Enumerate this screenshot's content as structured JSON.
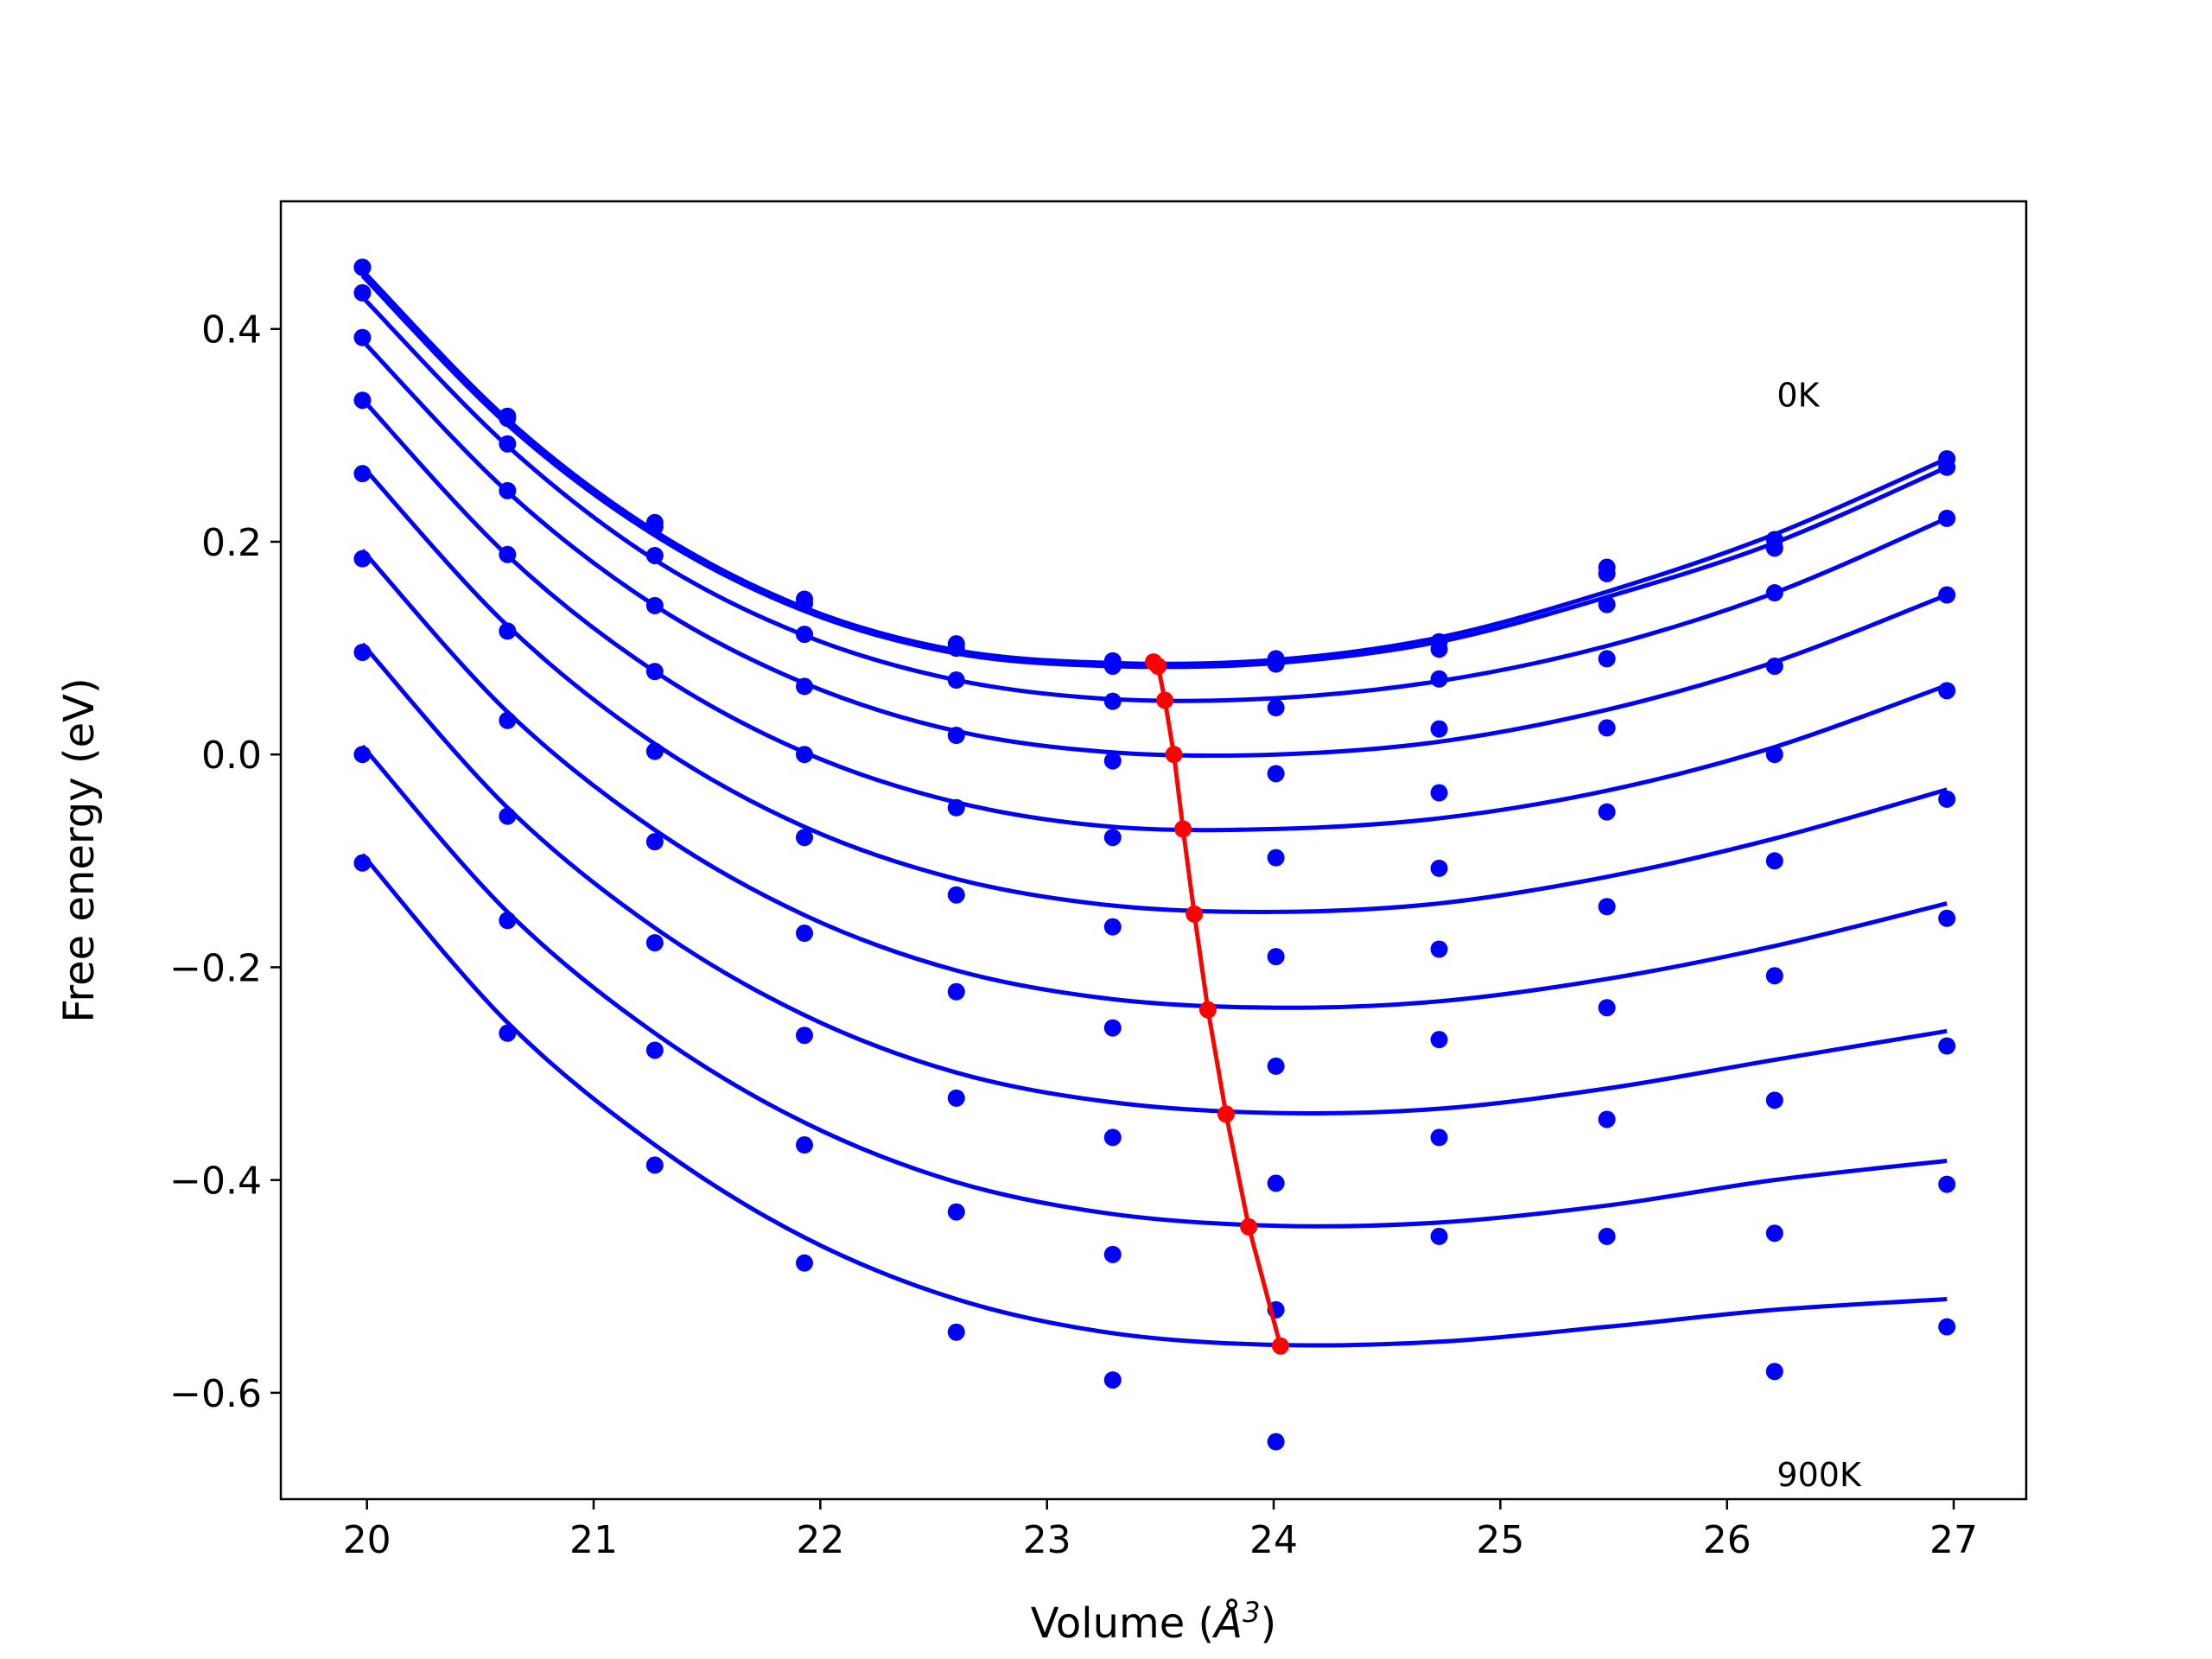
{
  "chart_data": {
    "type": "line",
    "title": "",
    "xlabel_prefix": "Volume (",
    "xlabel_unit": "Å",
    "xlabel_exp": "3",
    "xlabel_suffix": ")",
    "ylabel": "Free energy (eV)",
    "xlim": [
      19.62,
      27.32
    ],
    "ylim": [
      -0.7,
      0.52
    ],
    "xticks": [
      20,
      21,
      22,
      23,
      24,
      25,
      26,
      27
    ],
    "yticks": [
      0.4,
      0.2,
      0.0,
      -0.2,
      -0.4,
      -0.6
    ],
    "ytick_labels": [
      "0.4",
      "0.2",
      "0.0",
      "−0.2",
      "−0.4",
      "−0.6"
    ],
    "grid": false,
    "colors": {
      "curves": "#0000ff",
      "minima": "#ff0000"
    },
    "annotations": [
      {
        "text": "0K",
        "x": 26.22,
        "y": 0.327
      },
      {
        "text": "900K",
        "x": 26.22,
        "y": -0.688
      }
    ],
    "volumes": [
      19.98,
      20.62,
      21.27,
      21.93,
      22.6,
      23.29,
      24.01,
      24.73,
      25.47,
      26.21,
      26.97
    ],
    "series": [
      {
        "points": [
          0.458,
          0.318,
          0.218,
          0.146,
          0.104,
          0.088,
          0.09,
          0.106,
          0.176,
          0.202,
          0.278
        ],
        "fit": [
          0.455,
          0.315,
          0.21,
          0.138,
          0.098,
          0.086,
          0.089,
          0.11,
          0.153,
          0.207,
          0.278
        ]
      },
      {
        "points": [
          0.458,
          0.316,
          0.214,
          0.142,
          0.1,
          0.083,
          0.085,
          0.099,
          0.17,
          0.194,
          0.27
        ],
        "fit": [
          0.45,
          0.31,
          0.206,
          0.135,
          0.095,
          0.083,
          0.086,
          0.106,
          0.148,
          0.199,
          0.27
        ]
      },
      {
        "points": [
          0.434,
          0.292,
          0.187,
          0.113,
          0.07,
          0.05,
          0.044,
          0.071,
          0.141,
          0.152,
          0.222
        ],
        "fit": [
          0.43,
          0.29,
          0.183,
          0.112,
          0.07,
          0.052,
          0.053,
          0.069,
          0.102,
          0.152,
          0.222
        ]
      },
      {
        "points": [
          0.392,
          0.248,
          0.14,
          0.064,
          0.018,
          -0.006,
          -0.018,
          0.024,
          0.09,
          0.083,
          0.15
        ],
        "fit": [
          0.389,
          0.247,
          0.14,
          0.067,
          0.022,
          0.002,
          0.0,
          0.012,
          0.042,
          0.087,
          0.15
        ]
      },
      {
        "points": [
          0.333,
          0.188,
          0.078,
          0.0,
          -0.05,
          -0.078,
          -0.097,
          -0.036,
          0.025,
          0.0,
          0.06
        ],
        "fit": [
          0.334,
          0.187,
          0.078,
          0.002,
          -0.045,
          -0.068,
          -0.07,
          -0.06,
          -0.034,
          0.007,
          0.065
        ]
      },
      {
        "points": [
          0.264,
          0.116,
          0.003,
          -0.078,
          -0.132,
          -0.162,
          -0.19,
          -0.107,
          -0.054,
          -0.1,
          -0.042
        ],
        "fit": [
          0.271,
          0.121,
          0.01,
          -0.068,
          -0.117,
          -0.142,
          -0.148,
          -0.14,
          -0.115,
          -0.079,
          -0.033
        ]
      },
      {
        "points": [
          0.184,
          0.032,
          -0.082,
          -0.168,
          -0.223,
          -0.257,
          -0.293,
          -0.183,
          -0.143,
          -0.208,
          -0.154
        ],
        "fit": [
          0.192,
          0.04,
          -0.071,
          -0.151,
          -0.203,
          -0.23,
          -0.238,
          -0.232,
          -0.211,
          -0.18,
          -0.14
        ]
      },
      {
        "points": [
          0.096,
          -0.058,
          -0.177,
          -0.264,
          -0.323,
          -0.36,
          -0.403,
          -0.268,
          -0.238,
          -0.325,
          -0.274
        ],
        "fit": [
          0.104,
          -0.05,
          -0.163,
          -0.245,
          -0.299,
          -0.327,
          -0.337,
          -0.333,
          -0.314,
          -0.287,
          -0.26
        ]
      },
      {
        "points": [
          0.0,
          -0.156,
          -0.278,
          -0.367,
          -0.43,
          -0.47,
          -0.522,
          -0.36,
          -0.343,
          -0.45,
          -0.404
        ],
        "fit": [
          0.008,
          -0.148,
          -0.262,
          -0.346,
          -0.402,
          -0.432,
          -0.443,
          -0.44,
          -0.424,
          -0.4,
          -0.382
        ]
      },
      {
        "points": [
          -0.102,
          -0.262,
          -0.386,
          -0.478,
          -0.543,
          -0.588,
          -0.646,
          -0.453,
          -0.453,
          -0.58,
          -0.538
        ],
        "fit": [
          -0.094,
          -0.252,
          -0.367,
          -0.454,
          -0.512,
          -0.544,
          -0.555,
          -0.552,
          -0.538,
          -0.522,
          -0.512
        ]
      }
    ],
    "minima": {
      "x": [
        23.47,
        23.49,
        23.52,
        23.56,
        23.6,
        23.65,
        23.71,
        23.79,
        23.89,
        24.03
      ],
      "y": [
        0.087,
        0.083,
        0.051,
        0.0,
        -0.07,
        -0.15,
        -0.24,
        -0.338,
        -0.444,
        -0.556
      ]
    }
  }
}
